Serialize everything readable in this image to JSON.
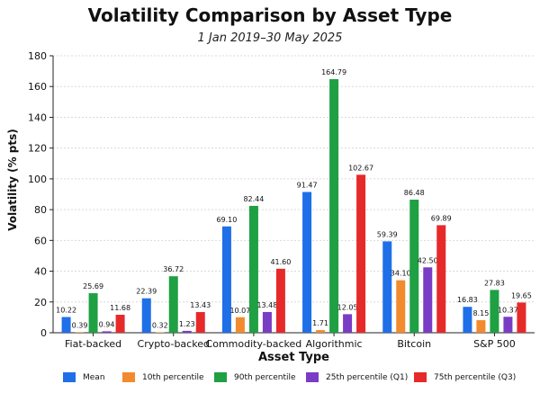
{
  "chart_data": {
    "type": "bar",
    "title": "Volatility Comparison by Asset Type",
    "subtitle": "1 Jan 2019–30 May 2025",
    "xlabel": "Asset Type",
    "ylabel": "Volatility (% pts)",
    "ylim": [
      0,
      180
    ],
    "yticks": [
      0,
      20,
      40,
      60,
      80,
      100,
      120,
      140,
      160,
      180
    ],
    "grid": true,
    "legend_placement": "bottom",
    "categories": [
      "Fiat-backed",
      "Crypto-backed",
      "Commodity-backed",
      "Algorithmic",
      "Bitcoin",
      "S&P 500"
    ],
    "series": [
      {
        "name": "Mean",
        "color": "#1f6fe8",
        "values": [
          10.22,
          22.39,
          69.1,
          91.47,
          59.39,
          16.83
        ],
        "labels": [
          "10.22",
          "22.39",
          "69.10",
          "91.47",
          "59.39",
          "16.83"
        ]
      },
      {
        "name": "10th percentile",
        "color": "#f28a2e",
        "values": [
          0.39,
          0.32,
          10.07,
          1.71,
          34.1,
          8.15
        ],
        "labels": [
          "0.39",
          "0.32",
          "10.07",
          "1.71",
          "34.10",
          "8.15"
        ]
      },
      {
        "name": "90th percentile",
        "color": "#1fa043",
        "values": [
          25.69,
          36.72,
          82.44,
          164.79,
          86.48,
          27.83
        ],
        "labels": [
          "25.69",
          "36.72",
          "82.44",
          "164.79",
          "86.48",
          "27.83"
        ]
      },
      {
        "name": "25th percentile (Q1)",
        "color": "#7a3cc4",
        "values": [
          0.94,
          1.23,
          13.48,
          12.05,
          42.5,
          10.37
        ],
        "labels": [
          "0.94",
          "1.23",
          "13.48",
          "12.05",
          "42.50",
          "10.37"
        ]
      },
      {
        "name": "75th percentile (Q3)",
        "color": "#e62a2a",
        "values": [
          11.68,
          13.43,
          41.6,
          102.67,
          69.89,
          19.65
        ],
        "labels": [
          "11.68",
          "13.43",
          "41.60",
          "102.67",
          "69.89",
          "19.65"
        ]
      }
    ]
  }
}
